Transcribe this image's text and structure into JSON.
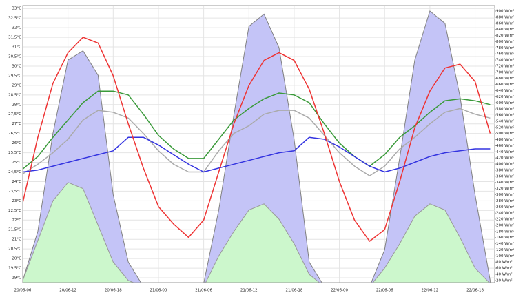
{
  "chart_data": {
    "type": "line",
    "x": [
      6,
      8,
      10,
      12,
      14,
      16,
      18,
      20,
      22,
      24,
      26,
      28,
      30,
      32,
      34,
      36,
      38,
      40,
      42,
      44,
      46,
      48,
      50,
      52,
      54,
      56,
      58,
      60,
      62,
      64,
      66,
      68
    ],
    "xlim": [
      6,
      68.6
    ],
    "xticks": [
      {
        "value": 6,
        "label": "20/06-06"
      },
      {
        "value": 12,
        "label": "20/06-12"
      },
      {
        "value": 18,
        "label": "20/06-18"
      },
      {
        "value": 24,
        "label": "21/06-00"
      },
      {
        "value": 30,
        "label": "21/06-06"
      },
      {
        "value": 36,
        "label": "21/06-12"
      },
      {
        "value": 42,
        "label": "21/06-18"
      },
      {
        "value": 48,
        "label": "22/06-00"
      },
      {
        "value": 54,
        "label": "22/06-06"
      },
      {
        "value": 60,
        "label": "22/06-12"
      },
      {
        "value": 66,
        "label": "22/06-18"
      }
    ],
    "ylim": [
      18.75,
      33.15
    ],
    "yticks": [
      {
        "value": 19,
        "label": "19°C"
      },
      {
        "value": 19.5,
        "label": "19,5°C"
      },
      {
        "value": 20,
        "label": "20°C"
      },
      {
        "value": 20.5,
        "label": "20,5°C"
      },
      {
        "value": 21,
        "label": "21°C"
      },
      {
        "value": 21.5,
        "label": "21,5°C"
      },
      {
        "value": 22,
        "label": "22°C"
      },
      {
        "value": 22.5,
        "label": "22,5°C"
      },
      {
        "value": 23,
        "label": "23°C"
      },
      {
        "value": 23.5,
        "label": "23,5°C"
      },
      {
        "value": 24,
        "label": "24°C"
      },
      {
        "value": 24.5,
        "label": "24,5°C"
      },
      {
        "value": 25,
        "label": "25°C"
      },
      {
        "value": 25.5,
        "label": "25,5°C"
      },
      {
        "value": 26,
        "label": "26°C"
      },
      {
        "value": 26.5,
        "label": "26,5°C"
      },
      {
        "value": 27,
        "label": "27°C"
      },
      {
        "value": 27.5,
        "label": "27,5°C"
      },
      {
        "value": 28,
        "label": "28°C"
      },
      {
        "value": 28.5,
        "label": "28,5°C"
      },
      {
        "value": 29,
        "label": "29°C"
      },
      {
        "value": 29.5,
        "label": "29,5°C"
      },
      {
        "value": 30,
        "label": "30°C"
      },
      {
        "value": 30.5,
        "label": "30,5°C"
      },
      {
        "value": 31,
        "label": "31°C"
      },
      {
        "value": 31.5,
        "label": "31,5°C"
      },
      {
        "value": 32,
        "label": "32°C"
      },
      {
        "value": 32.5,
        "label": "32,5°C"
      },
      {
        "value": 33,
        "label": "33°C"
      }
    ],
    "y2lim": [
      13,
      918
    ],
    "y2ticks": [
      {
        "value": 20,
        "label": "20 W/m²"
      },
      {
        "value": 40,
        "label": "40 W/m²"
      },
      {
        "value": 60,
        "label": "60 W/m²"
      },
      {
        "value": 80,
        "label": "80 W/m²"
      },
      {
        "value": 100,
        "label": "100 W/m²"
      },
      {
        "value": 120,
        "label": "120 W/m²"
      },
      {
        "value": 140,
        "label": "140 W/m²"
      },
      {
        "value": 160,
        "label": "160 W/m²"
      },
      {
        "value": 180,
        "label": "180 W/m²"
      },
      {
        "value": 200,
        "label": "200 W/m²"
      },
      {
        "value": 220,
        "label": "220 W/m²"
      },
      {
        "value": 240,
        "label": "240 W/m²"
      },
      {
        "value": 260,
        "label": "260 W/m²"
      },
      {
        "value": 280,
        "label": "280 W/m²"
      },
      {
        "value": 300,
        "label": "300 W/m²"
      },
      {
        "value": 320,
        "label": "320 W/m²"
      },
      {
        "value": 340,
        "label": "340 W/m²"
      },
      {
        "value": 360,
        "label": "360 W/m²"
      },
      {
        "value": 380,
        "label": "380 W/m²"
      },
      {
        "value": 400,
        "label": "400 W/m²"
      },
      {
        "value": 420,
        "label": "420 W/m²"
      },
      {
        "value": 440,
        "label": "440 W/m²"
      },
      {
        "value": 460,
        "label": "460 W/m²"
      },
      {
        "value": 480,
        "label": "480 W/m²"
      },
      {
        "value": 500,
        "label": "500 W/m²"
      },
      {
        "value": 520,
        "label": "520 W/m²"
      },
      {
        "value": 540,
        "label": "540 W/m²"
      },
      {
        "value": 560,
        "label": "560 W/m²"
      },
      {
        "value": 580,
        "label": "580 W/m²"
      },
      {
        "value": 600,
        "label": "600 W/m²"
      },
      {
        "value": 620,
        "label": "620 W/m²"
      },
      {
        "value": 640,
        "label": "640 W/m²"
      },
      {
        "value": 660,
        "label": "660 W/m²"
      },
      {
        "value": 680,
        "label": "680 W/m²"
      },
      {
        "value": 700,
        "label": "700 W/m²"
      },
      {
        "value": 720,
        "label": "720 W/m²"
      },
      {
        "value": 740,
        "label": "740 W/m²"
      },
      {
        "value": 760,
        "label": "760 W/m²"
      },
      {
        "value": 780,
        "label": "780 W/m²"
      },
      {
        "value": 800,
        "label": "800 W/m²"
      },
      {
        "value": 820,
        "label": "820 W/m²"
      },
      {
        "value": 840,
        "label": "840 W/m²"
      },
      {
        "value": 860,
        "label": "860 W/m²"
      },
      {
        "value": 880,
        "label": "880 W/m²"
      },
      {
        "value": 900,
        "label": "900 W/m²"
      }
    ],
    "grid": true,
    "series": [
      {
        "color": "#c4c4f7",
        "edge": "#808080",
        "area": true,
        "axis": "y2",
        "values": [
          20,
          180,
          500,
          740,
          770,
          690,
          300,
          80,
          0,
          0,
          0,
          0,
          10,
          250,
          560,
          850,
          890,
          780,
          480,
          80,
          0,
          0,
          0,
          0,
          120,
          420,
          740,
          900,
          860,
          620,
          300,
          20
        ]
      },
      {
        "color": "#ccf7cc",
        "edge": "#999999",
        "area": true,
        "axis": "y2",
        "values": [
          20,
          150,
          280,
          340,
          320,
          200,
          80,
          20,
          0,
          0,
          0,
          0,
          0,
          100,
          180,
          250,
          270,
          220,
          140,
          40,
          0,
          0,
          0,
          0,
          60,
          140,
          230,
          270,
          250,
          160,
          60,
          10
        ]
      },
      {
        "color": "#aaaaaa",
        "values": [
          24.4,
          24.9,
          25.5,
          26.2,
          27.2,
          27.7,
          27.6,
          27.3,
          26.5,
          25.6,
          24.9,
          24.5,
          24.5,
          25.6,
          26.5,
          26.9,
          27.5,
          27.7,
          27.7,
          27.3,
          26.4,
          25.5,
          24.8,
          24.3,
          24.8,
          25.7,
          26.3,
          27.0,
          27.6,
          27.8,
          27.5,
          27.3
        ]
      },
      {
        "color": "#3a9a3a",
        "values": [
          24.65,
          25.3,
          26.3,
          27.2,
          28.1,
          28.7,
          28.7,
          28.5,
          27.5,
          26.4,
          25.7,
          25.2,
          25.2,
          26.2,
          27.2,
          27.8,
          28.3,
          28.6,
          28.5,
          28.1,
          27.0,
          26.0,
          25.3,
          24.8,
          25.4,
          26.3,
          26.9,
          27.6,
          28.2,
          28.3,
          28.2,
          28.0
        ]
      },
      {
        "color": "#3333e0",
        "values": [
          24.5,
          24.6,
          24.8,
          25.0,
          25.2,
          25.4,
          25.6,
          26.3,
          26.3,
          25.9,
          25.4,
          24.9,
          24.5,
          24.7,
          24.9,
          25.1,
          25.3,
          25.5,
          25.6,
          26.3,
          26.2,
          25.8,
          25.3,
          24.8,
          24.5,
          24.7,
          25.0,
          25.3,
          25.5,
          25.6,
          25.7,
          25.7
        ]
      },
      {
        "color": "#ee3333",
        "values": [
          22.9,
          26.3,
          29.1,
          30.7,
          31.5,
          31.2,
          29.5,
          27.0,
          24.7,
          22.7,
          21.8,
          21.1,
          22.0,
          24.5,
          27.0,
          29.0,
          30.3,
          30.7,
          30.3,
          28.8,
          26.5,
          24.0,
          22.0,
          20.9,
          21.5,
          24.0,
          26.8,
          28.7,
          29.9,
          30.1,
          29.2,
          26.5
        ]
      }
    ]
  }
}
